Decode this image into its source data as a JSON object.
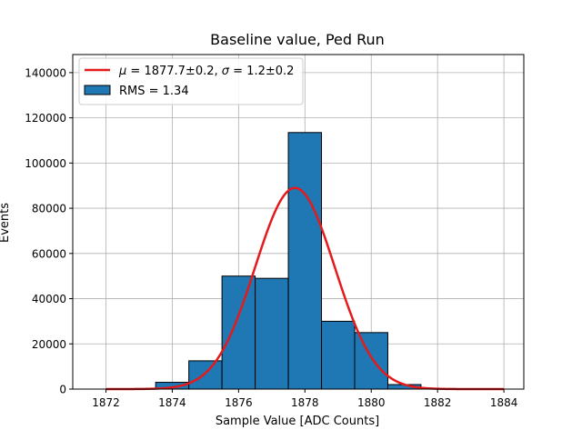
{
  "chart_data": {
    "type": "bar",
    "title": "Baseline value, Ped Run",
    "xlabel": "Sample Value [ADC Counts]",
    "ylabel": "Events",
    "xlim": [
      1871.0,
      1884.6
    ],
    "ylim": [
      0,
      148000
    ],
    "xticks": [
      1872,
      1874,
      1876,
      1878,
      1880,
      1882,
      1884
    ],
    "yticks": [
      0,
      20000,
      40000,
      60000,
      80000,
      100000,
      120000,
      140000
    ],
    "xtick_labels": [
      "1872",
      "1874",
      "1876",
      "1878",
      "1880",
      "1882",
      "1884"
    ],
    "ytick_labels": [
      "0",
      "20000",
      "40000",
      "60000",
      "80000",
      "100000",
      "120000",
      "140000"
    ],
    "grid": true,
    "legend_position": "top-left",
    "histogram": {
      "name": "RMS = 1.34",
      "color": "#1f77b4",
      "edge_color": "#000000",
      "bin_edges": [
        1871.5,
        1872.5,
        1873.5,
        1874.5,
        1875.5,
        1876.5,
        1877.5,
        1878.5,
        1879.5,
        1880.5,
        1881.5,
        1882.5,
        1883.5
      ],
      "counts": [
        0,
        0,
        3000,
        12500,
        50000,
        49000,
        113500,
        30000,
        25000,
        2000,
        0,
        0
      ]
    },
    "fit": {
      "label": "μ = 1877.7±0.2, σ = 1.2±0.2",
      "label_parts": {
        "mu_symbol": "μ",
        "mu_value": " = 1877.7±0.2, ",
        "sigma_symbol": "σ",
        "sigma_value": " = 1.2±0.2"
      },
      "color": "#e41a1c",
      "function": "gaussian",
      "amplitude": 89000,
      "mean": 1877.7,
      "sigma": 1.2,
      "x_range": [
        1872,
        1884
      ]
    }
  }
}
